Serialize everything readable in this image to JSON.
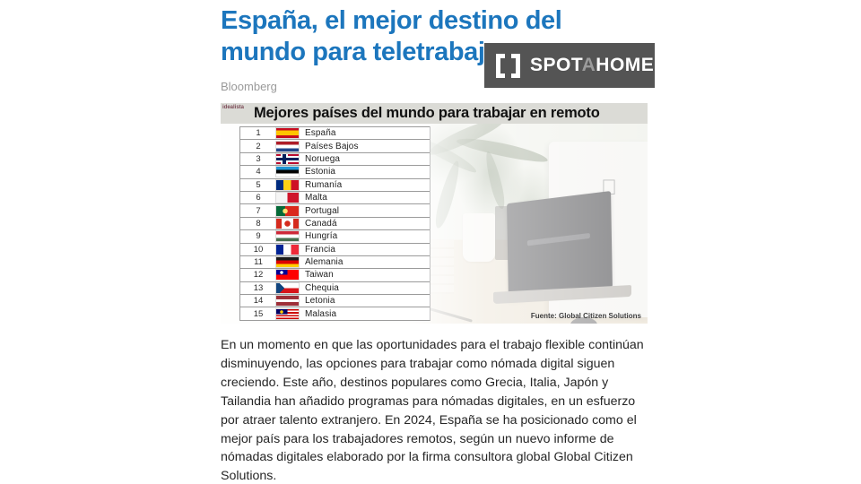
{
  "article": {
    "title": "España, el mejor destino del mundo para teletrabajar",
    "source": "Bloomberg",
    "body": "En un momento en que las oportunidades para el trabajo flexible continúan disminuyendo, las opciones para trabajar como nómada digital siguen creciendo. Este año, destinos populares como Grecia, Italia, Japón y Tailandia han añadido programas para nómadas digitales, en un esfuerzo por atraer talento extranjero. En 2024, España se ha posicionado como el mejor país para los trabajadores remotos, según un nuevo informe de nómadas digitales elaborado por la firma consultora global Global Citizen Solutions.",
    "title_color": "#1c76bd"
  },
  "watermark": {
    "spot": "SPOT",
    "a": "A",
    "home": "HOME",
    "background": "#545454",
    "icon": "bracket-square-icon"
  },
  "infographic": {
    "brand": "idealista",
    "title": "Mejores países del mundo para trabajar en remoto",
    "source": "Fuente: Global Citizen Solutions",
    "rows": [
      {
        "rank": "1",
        "country": "España",
        "flag": "linear-gradient(180deg,#c60b1e 0 25%,#ffc400 25% 75%,#c60b1e 75%)"
      },
      {
        "rank": "2",
        "country": "Países Bajos",
        "flag": "linear-gradient(180deg,#ae1c28 0 33%,#ffffff 33% 66%,#21468b 66%)"
      },
      {
        "rank": "3",
        "country": "Noruega",
        "flag": "linear-gradient(90deg,transparent 0 7px,#00205b 7px 11px,transparent 11px),linear-gradient(180deg,transparent 0 4px,#00205b 4px 7px,transparent 7px),linear-gradient(90deg,transparent 0 5px,#ffffff 5px 13px,transparent 13px),linear-gradient(180deg,transparent 0 2px,#ffffff 2px 9px,transparent 9px),linear-gradient(#ba0c2f,#ba0c2f)"
      },
      {
        "rank": "4",
        "country": "Estonia",
        "flag": "linear-gradient(180deg,#2196d6 0 33%,#000000 33% 66%,#ffffff 66%)"
      },
      {
        "rank": "5",
        "country": "Rumanía",
        "flag": "linear-gradient(90deg,#002b7f 0 33%,#fcd116 33% 66%,#ce1126 66%)"
      },
      {
        "rank": "6",
        "country": "Malta",
        "flag": "linear-gradient(90deg,#f5f5f5 0 50%,#cf142b 50%)"
      },
      {
        "rank": "7",
        "country": "Portugal",
        "flag": "radial-gradient(circle at 10px 5.5px,#ffe06e 0 2.5px,transparent 3px),linear-gradient(90deg,#046a38 0 10px,#da291c 10px)"
      },
      {
        "rank": "8",
        "country": "Canadá",
        "flag": "radial-gradient(circle at 50% 50%,#d52b1e 0 3px,transparent 3.5px),linear-gradient(90deg,#d52b1e 0 6px,#ffffff 6px 19px,#d52b1e 19px)"
      },
      {
        "rank": "9",
        "country": "Hungría",
        "flag": "linear-gradient(180deg,#ce2939 0 33%,#ffffff 33% 66%,#477050 66%)"
      },
      {
        "rank": "10",
        "country": "Francia",
        "flag": "linear-gradient(90deg,#002395 0 33%,#ffffff 33% 66%,#ed2939 66%)"
      },
      {
        "rank": "11",
        "country": "Alemania",
        "flag": "linear-gradient(180deg,#1a1a1a 0 33%,#dd0000 33% 66%,#ffce00 66%)"
      },
      {
        "rank": "12",
        "country": "Taiwan",
        "flag": "radial-gradient(circle at 6px 3px,#ffffff 0 1.5px,transparent 2px),conic-gradient(#fe0000 0 75%,#000095 75%)"
      },
      {
        "rank": "13",
        "country": "Chequia",
        "flag": "conic-gradient(from 225deg at 9px 50%,#11457e 0 90deg,transparent 90deg),linear-gradient(180deg,#ffffff 0 50%,#d7141a 50%)"
      },
      {
        "rank": "14",
        "country": "Letonia",
        "flag": "linear-gradient(180deg,#9e3039 0 38%,#ffffff 38% 62%,#9e3039 62%)"
      },
      {
        "rank": "15",
        "country": "Malasia",
        "flag": "radial-gradient(circle at 6px 3px,#ffcc00 0 1.6px,transparent 2px),conic-gradient(transparent 0 75%,#010066 75%),repeating-linear-gradient(180deg,#cc0001 0 1.6px,#ffffff 1.6px 3.2px)"
      }
    ]
  }
}
